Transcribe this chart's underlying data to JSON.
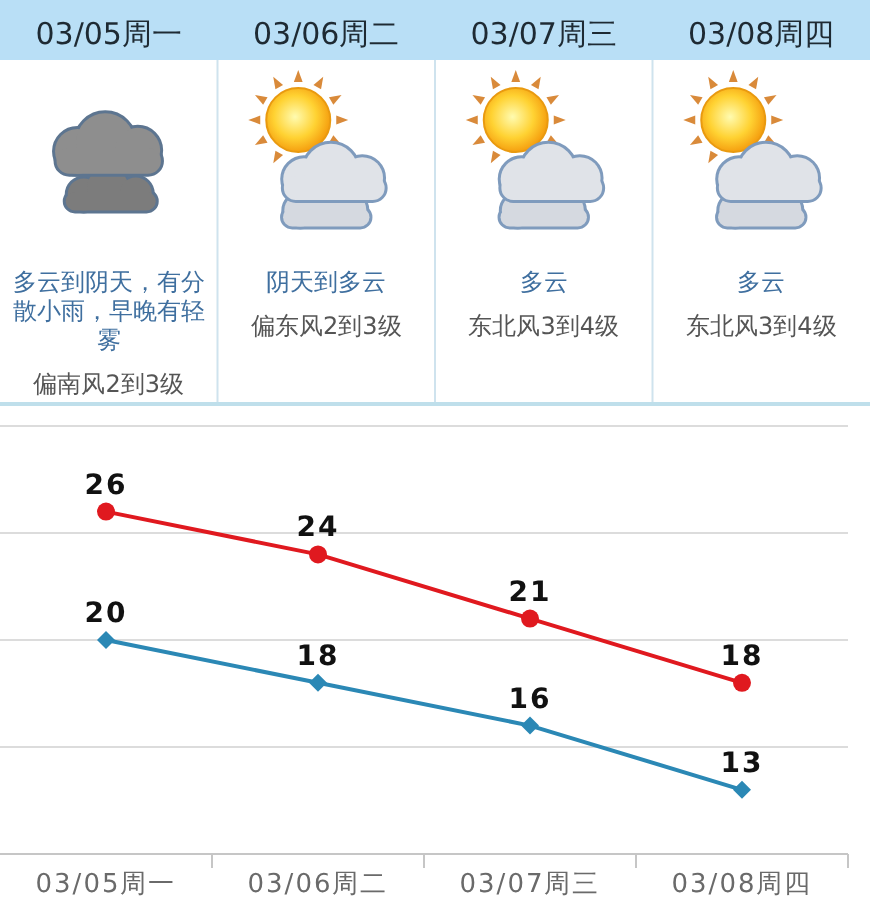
{
  "chart_data": [
    {
      "type": "other",
      "categories": [
        "03/05周一",
        "03/06周二",
        "03/07周三",
        "03/08周四"
      ],
      "annotations": [
        "多云到阴天，有分散小雨，早晚有轻雾",
        "偏南风2到3级",
        "阴天到多云",
        "偏东风2到3级",
        "多云",
        "东北风3到4级",
        "多云",
        "东北风3到4级"
      ]
    },
    {
      "type": "line",
      "categories": [
        "03/05周一",
        "03/06周二",
        "03/07周三",
        "03/08周四"
      ],
      "series": [
        {
          "color": "#e0191f",
          "marker": "circle",
          "values": [
            26,
            24,
            21,
            18
          ]
        },
        {
          "color": "#2b88b5",
          "marker": "diamond",
          "values": [
            20,
            18,
            16,
            13
          ]
        }
      ],
      "ylim": [
        10,
        30
      ],
      "yticks": [
        {
          "value": 10,
          "label": null
        },
        {
          "value": 15,
          "label": null
        },
        {
          "value": 20,
          "label": null
        },
        {
          "value": 25,
          "label": null
        },
        {
          "value": 30,
          "label": null
        }
      ],
      "grid": "y",
      "tick_labels": "x",
      "data_labels": true
    }
  ]
}
